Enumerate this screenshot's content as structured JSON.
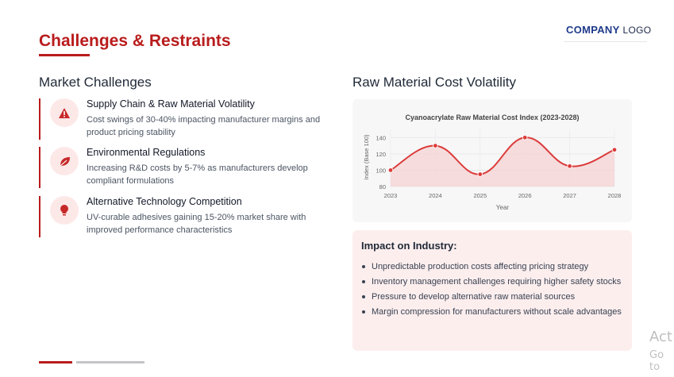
{
  "header": {
    "logo_bold": "COMPANY",
    "logo_light": "LOGO",
    "title": "Challenges & Restraints"
  },
  "left": {
    "heading": "Market Challenges",
    "challenges": [
      {
        "icon": "warning-icon",
        "title": "Supply Chain & Raw Material Volatility",
        "description": "Cost swings of 30-40% impacting manufacturer margins and product pricing stability"
      },
      {
        "icon": "leaf-icon",
        "title": "Environmental Regulations",
        "description": "Increasing R&D costs by 5-7% as manufacturers develop compliant formulations"
      },
      {
        "icon": "lightbulb-icon",
        "title": "Alternative Technology Competition",
        "description": "UV-curable adhesives gaining 15-20% market share with improved performance characteristics"
      }
    ]
  },
  "right": {
    "heading": "Raw Material Cost Volatility",
    "impact": {
      "title": "Impact on Industry:",
      "items": [
        "Unpredictable production costs affecting pricing strategy",
        "Inventory management challenges requiring higher safety stocks",
        "Pressure to develop alternative raw material sources",
        "Margin compression for manufacturers without scale advantages"
      ]
    }
  },
  "chart_data": {
    "type": "area",
    "title": "Cyanoacrylate Raw Material Cost Index (2023-2028)",
    "xlabel": "Year",
    "ylabel": "Index (Base 100)",
    "categories": [
      "2023",
      "2024",
      "2025",
      "2026",
      "2027",
      "2028"
    ],
    "values": [
      100,
      130,
      95,
      140,
      105,
      125
    ],
    "ylim": [
      80,
      150
    ],
    "yticks": [
      80,
      100,
      120,
      140
    ],
    "grid": true,
    "line_color": "#dc3b3b",
    "fill_color": "#f5d3d3"
  },
  "watermark": {
    "line1": "Act",
    "line2": "Go to"
  },
  "colors": {
    "accent": "#b91c1c",
    "brand": "#1e3a8a"
  }
}
